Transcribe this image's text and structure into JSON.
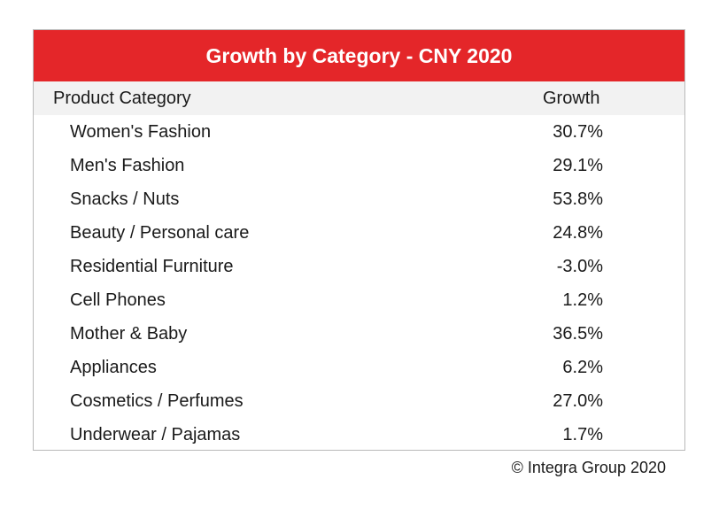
{
  "chart_data": {
    "type": "table",
    "title": "Growth by Category - CNY 2020",
    "columns": [
      "Product Category",
      "Growth"
    ],
    "rows": [
      {
        "category": "Women's Fashion",
        "growth": "30.7%"
      },
      {
        "category": "Men's Fashion",
        "growth": "29.1%"
      },
      {
        "category": "Snacks / Nuts",
        "growth": "53.8%"
      },
      {
        "category": "Beauty / Personal care",
        "growth": "24.8%"
      },
      {
        "category": "Residential Furniture",
        "growth": "-3.0%"
      },
      {
        "category": "Cell Phones",
        "growth": "1.2%"
      },
      {
        "category": "Mother & Baby",
        "growth": "36.5%"
      },
      {
        "category": "Appliances",
        "growth": "6.2%"
      },
      {
        "category": "Cosmetics / Perfumes",
        "growth": "27.0%"
      },
      {
        "category": "Underwear / Pajamas",
        "growth": "1.7%"
      }
    ],
    "values": [
      30.7,
      29.1,
      53.8,
      24.8,
      -3.0,
      1.2,
      36.5,
      6.2,
      27.0,
      1.7
    ]
  },
  "footer": {
    "copyright": "© Integra Group 2020"
  },
  "colors": {
    "title_background": "#e42629",
    "header_background": "#f2f2f2",
    "border": "#b9b9b9"
  }
}
